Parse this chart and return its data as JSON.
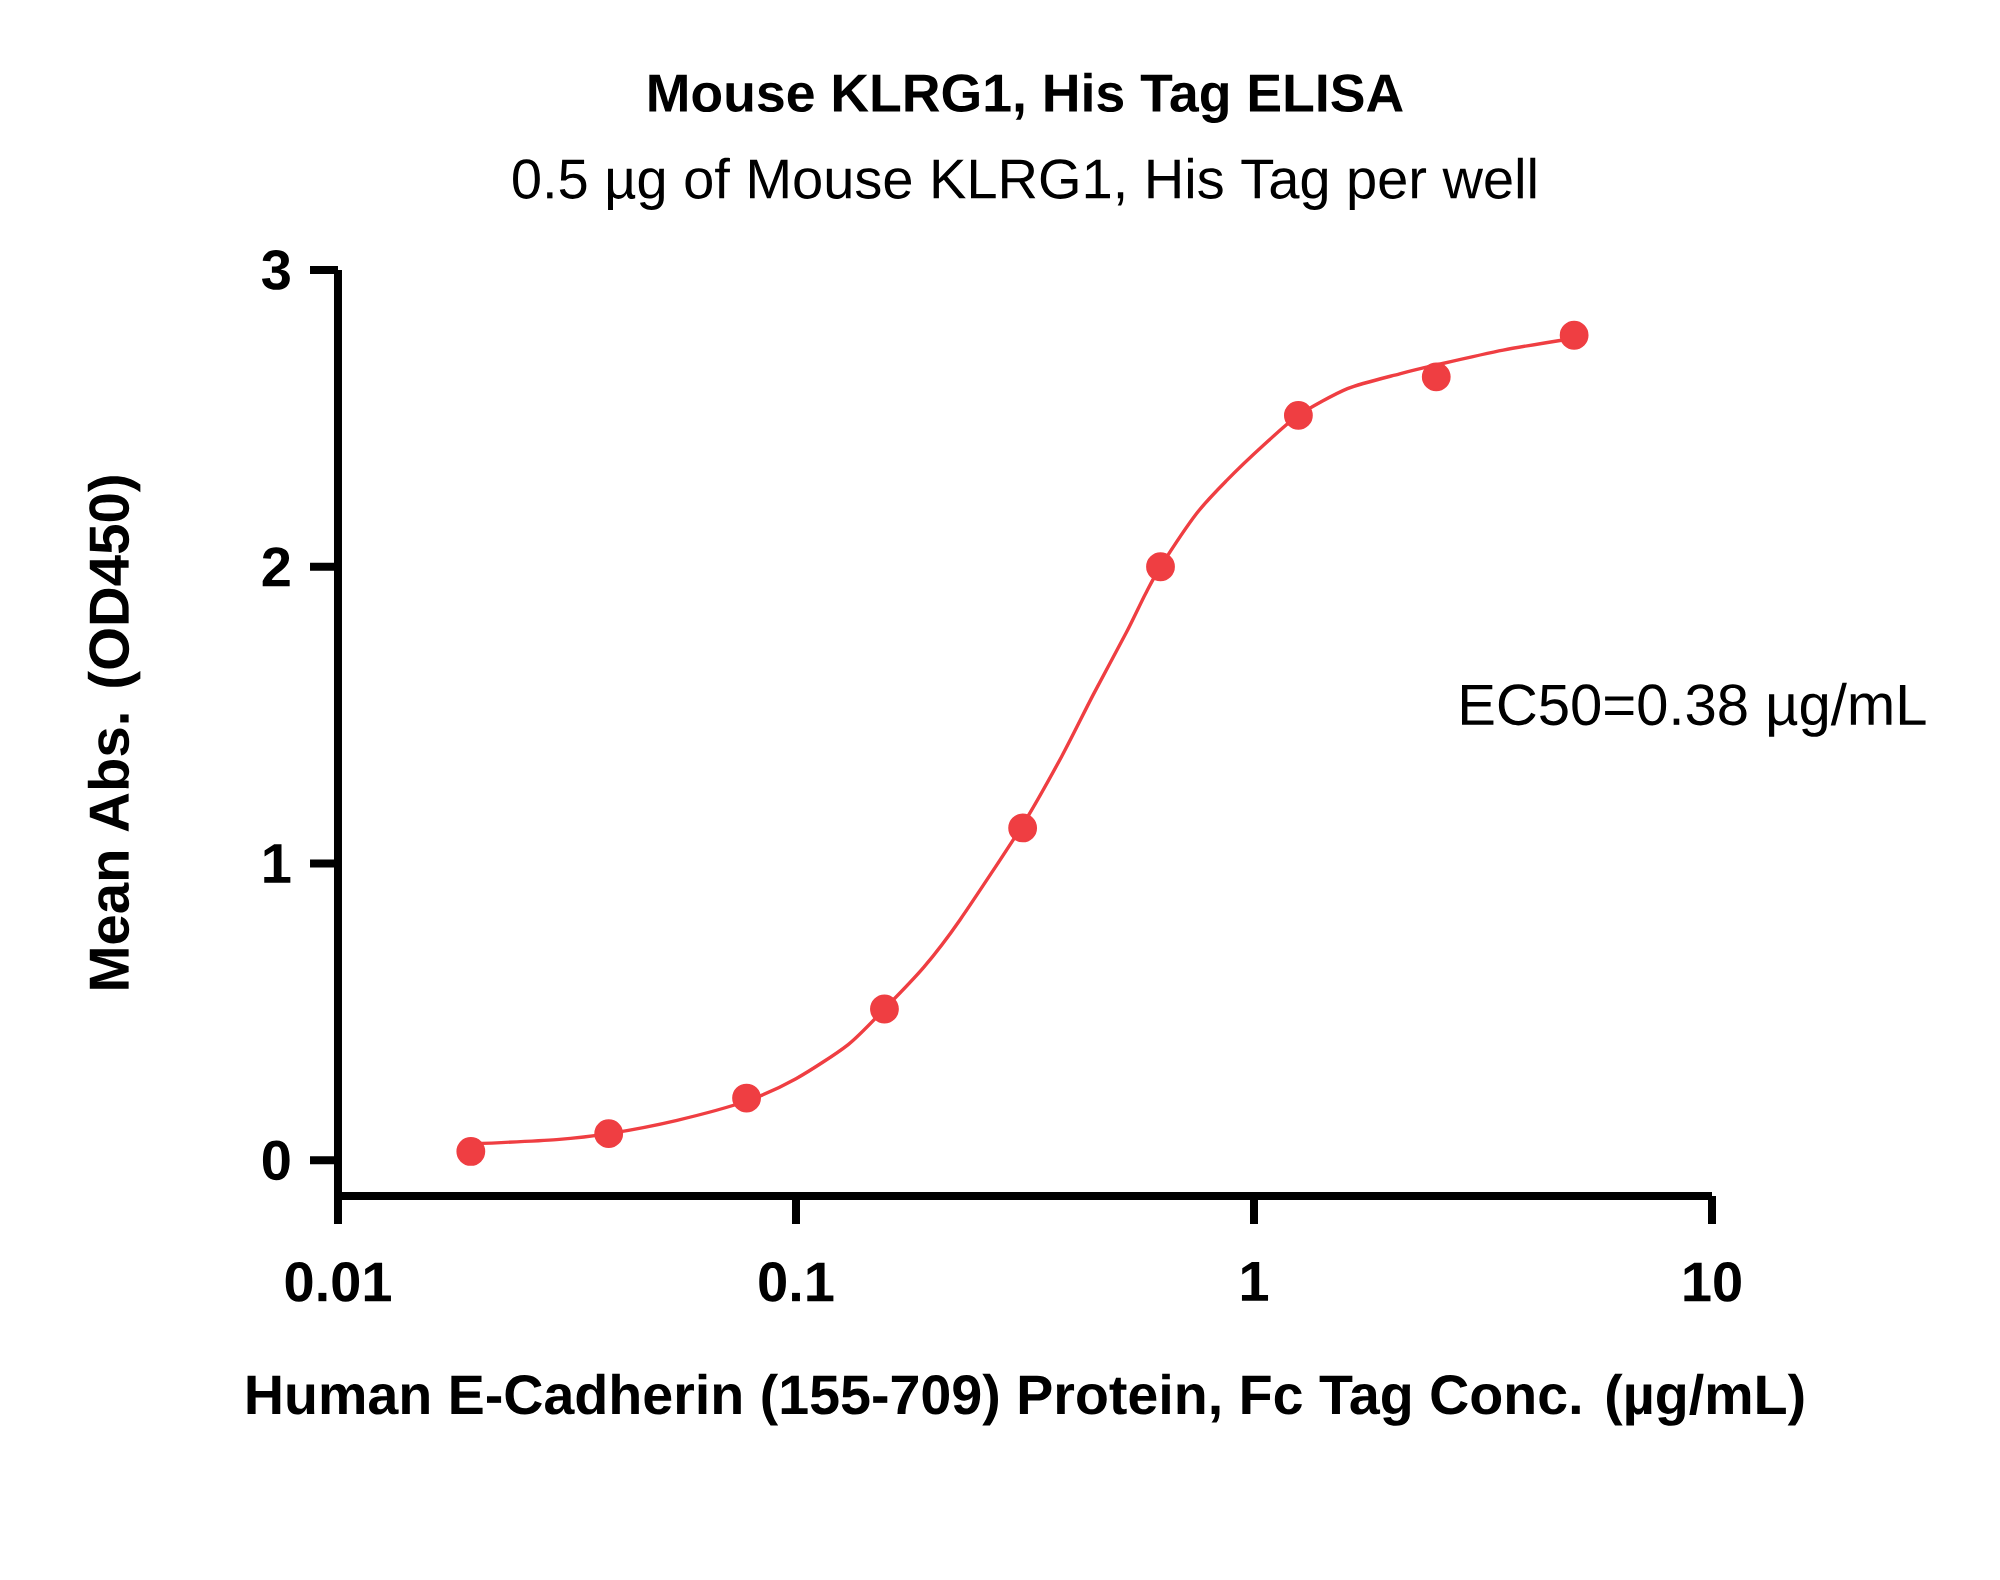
{
  "chart_data": {
    "type": "scatter",
    "title": "Mouse KLRG1, His Tag ELISA",
    "subtitle": "0.5 µg of Mouse KLRG1, His Tag per well",
    "xlabel": "Human E-Cadherin (155-709) Protein, Fc Tag Conc. (µg/mL)",
    "ylabel": "Mean Abs. (OD450)",
    "annotations": [
      "EC50=0.38 µg/mL"
    ],
    "log": "x",
    "xlim": [
      0.01,
      10
    ],
    "ylim": [
      -0.12,
      3
    ],
    "xticks": [
      0.01,
      0.1,
      1,
      10
    ],
    "yticks": [
      0,
      1,
      2,
      3
    ],
    "series": [
      {
        "type": "line",
        "color": "#ef3e42",
        "line_style": "solid",
        "x": [
          0.0195,
          0.03,
          0.039,
          0.055,
          0.078,
          0.1,
          0.13,
          0.156,
          0.19,
          0.228,
          0.3125,
          0.38,
          0.446,
          0.527,
          0.58,
          0.625,
          0.75,
          0.871,
          1.05,
          1.25,
          1.6,
          2.08,
          2.5,
          3.5,
          5
        ],
        "values": [
          0.055,
          0.07,
          0.09,
          0.135,
          0.2,
          0.275,
          0.39,
          0.51,
          0.65,
          0.81,
          1.13,
          1.36,
          1.57,
          1.78,
          1.91,
          2.0,
          2.18,
          2.29,
          2.41,
          2.51,
          2.6,
          2.65,
          2.68,
          2.73,
          2.77
        ]
      },
      {
        "color": "#ef3e42",
        "marker": "circle",
        "x": [
          0.0195,
          0.039,
          0.078,
          0.156,
          0.3125,
          0.625,
          1.25,
          2.5,
          5
        ],
        "values": [
          0.03,
          0.09,
          0.21,
          0.51,
          1.12,
          2.0,
          2.51,
          2.64,
          2.78
        ]
      }
    ]
  }
}
